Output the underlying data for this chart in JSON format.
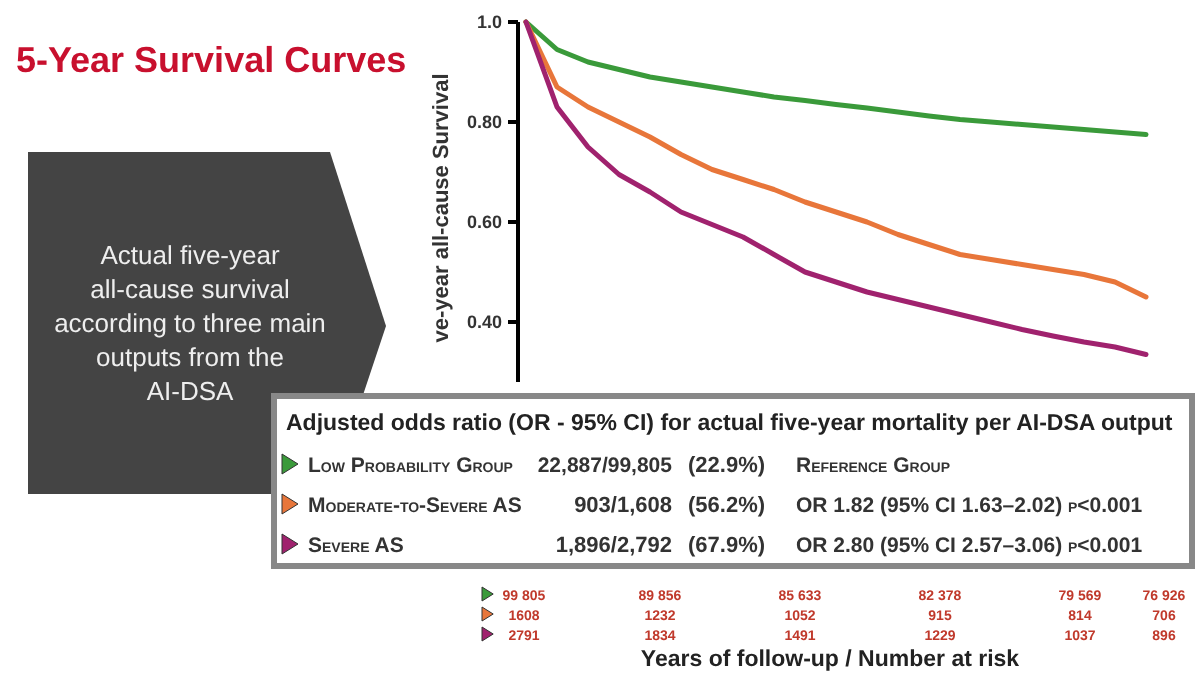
{
  "chart_data": {
    "type": "line",
    "title": "5-Year Survival Curves",
    "ylabel": "ve-year all-cause Survival",
    "categories": [
      null,
      null,
      null,
      null,
      null,
      null,
      null,
      null,
      null,
      null,
      null,
      null,
      null,
      null,
      null,
      null,
      null,
      null,
      null,
      null,
      null
    ],
    "ylim": [
      0.28,
      1.0
    ],
    "yticks": [
      {
        "value": 1.0,
        "label": "1.0"
      },
      {
        "value": 0.8,
        "label": "0.80"
      },
      {
        "value": 0.6,
        "label": "0.60"
      },
      {
        "value": 0.4,
        "label": "0.40"
      }
    ],
    "tick_labels": "y",
    "grid": false,
    "legend": "bottom",
    "marker": "none",
    "line_style": "solid",
    "series": [
      {
        "name": "Low Probability Group",
        "color": "#3a9a3a",
        "values": [
          1.0,
          0.945,
          0.92,
          0.905,
          0.89,
          0.88,
          0.87,
          0.86,
          0.85,
          0.843,
          0.835,
          0.828,
          0.82,
          0.812,
          0.805,
          0.8,
          0.795,
          0.79,
          0.785,
          0.78,
          0.775
        ]
      },
      {
        "name": "Moderate-to-Severe AS",
        "color": "#e8763a",
        "values": [
          1.0,
          0.87,
          0.83,
          0.8,
          0.77,
          0.735,
          0.705,
          0.685,
          0.665,
          0.64,
          0.62,
          0.6,
          0.575,
          0.555,
          0.535,
          0.525,
          0.515,
          0.505,
          0.495,
          0.48,
          0.45
        ]
      },
      {
        "name": "Severe AS",
        "color": "#a0226e",
        "values": [
          1.0,
          0.83,
          0.75,
          0.695,
          0.66,
          0.62,
          0.595,
          0.57,
          0.535,
          0.5,
          0.48,
          0.46,
          0.445,
          0.43,
          0.415,
          0.4,
          0.385,
          0.372,
          0.36,
          0.35,
          0.335
        ]
      }
    ],
    "annotations": [
      "Actual five-year all-cause survival according to three main outputs from the AI-DSA",
      "Adjusted odds ratio (OR - 95% CI) for actual five-year mortality per AI-DSA output",
      "22,887/99,805",
      "(22.9%)",
      "Reference Group",
      "903/1,608",
      "(56.2%)",
      "OR 1.82 (95% CI 1.63–2.02) p<0.001",
      "1,896/2,792",
      "(67.9%)",
      "OR 2.80 (95% CI 2.57–3.06) p<0.001",
      "99 805",
      "89 856",
      "85 633",
      "82 378",
      "79 569",
      "76 926",
      "1608",
      "1232",
      "1052",
      "915",
      "814",
      "706",
      "2791",
      "1834",
      "1491",
      "1229",
      "1037",
      "896",
      "Years of follow-up / Number at risk"
    ]
  }
}
